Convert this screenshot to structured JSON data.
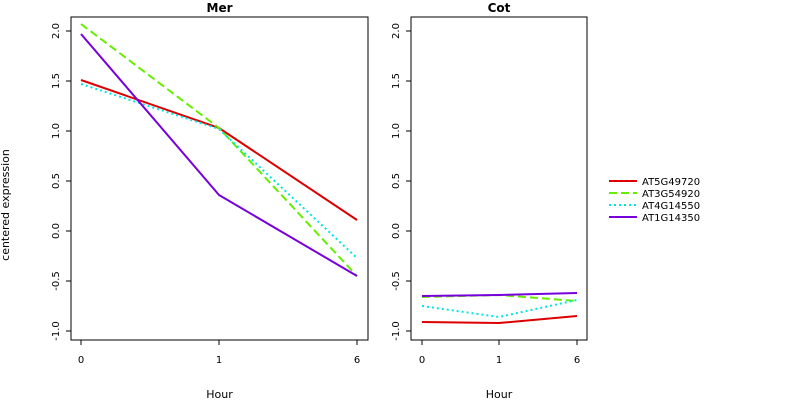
{
  "ylabel": "centered expression",
  "chart_data": [
    {
      "type": "line",
      "title": "Mer",
      "xlabel": "Hour",
      "categories": [
        "0",
        "1",
        "6"
      ],
      "ylim": [
        -1.0,
        2.2
      ],
      "yticks": [
        "-1.0",
        "-0.5",
        "0.0",
        "0.5",
        "1.0",
        "1.5",
        "2.0"
      ],
      "series": [
        {
          "name": "AT5G49720",
          "color": "#dd0000",
          "dash": "solid",
          "values": [
            1.51,
            1.03,
            0.11
          ]
        },
        {
          "name": "AT3G54920",
          "color": "#66ee00",
          "dash": "dashed",
          "values": [
            2.07,
            1.03,
            -0.45
          ]
        },
        {
          "name": "AT4G14550",
          "color": "#00e5e5",
          "dash": "dotted",
          "values": [
            1.47,
            1.02,
            -0.27
          ]
        },
        {
          "name": "AT1G14350",
          "color": "#7700dd",
          "dash": "solid",
          "values": [
            1.97,
            0.36,
            -0.45
          ]
        }
      ]
    },
    {
      "type": "line",
      "title": "Cot",
      "xlabel": "Hour",
      "categories": [
        "0",
        "1",
        "6"
      ],
      "ylim": [
        -1.0,
        2.2
      ],
      "yticks": [
        "-1.0",
        "-0.5",
        "0.0",
        "0.5",
        "1.0",
        "1.5",
        "2.0"
      ],
      "series": [
        {
          "name": "AT5G49720",
          "color": "#dd0000",
          "dash": "solid",
          "values": [
            -0.91,
            -0.92,
            -0.85
          ]
        },
        {
          "name": "AT3G54920",
          "color": "#66ee00",
          "dash": "dashed",
          "values": [
            -0.66,
            -0.64,
            -0.7
          ]
        },
        {
          "name": "AT4G14550",
          "color": "#00e5e5",
          "dash": "dotted",
          "values": [
            -0.75,
            -0.86,
            -0.69
          ]
        },
        {
          "name": "AT1G14350",
          "color": "#7700dd",
          "dash": "solid",
          "values": [
            -0.65,
            -0.64,
            -0.62
          ]
        }
      ]
    }
  ],
  "legend": {
    "position": "right",
    "items": [
      {
        "label": "AT5G49720",
        "color": "#dd0000",
        "dash": "solid"
      },
      {
        "label": "AT3G54920",
        "color": "#66ee00",
        "dash": "dashed"
      },
      {
        "label": "AT4G14550",
        "color": "#00e5e5",
        "dash": "dotted"
      },
      {
        "label": "AT1G14350",
        "color": "#7700dd",
        "dash": "solid"
      }
    ]
  }
}
